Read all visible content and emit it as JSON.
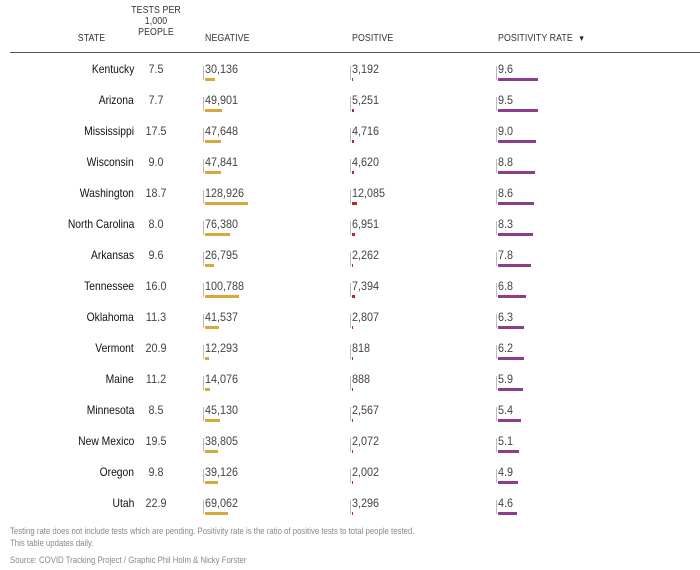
{
  "headers": {
    "state": "STATE",
    "tests_per_1000_line1": "TESTS PER",
    "tests_per_1000_line2": "1,000",
    "tests_per_1000_line3": "PEOPLE",
    "negative": "NEGATIVE",
    "positive": "POSITIVE",
    "positivity_rate": "POSITIVITY RATE",
    "sort_icon": "triangle-down"
  },
  "colors": {
    "negative": "#d6a93a",
    "positive": "#b7282e",
    "positivity_rate": "#8e3c8e"
  },
  "footer": {
    "note": "Testing rate does not include tests which are pending. Positivity rate is the ratio of positive tests to total people tested.",
    "updates": "This table updates daily.",
    "source": "Source: COVID Tracking Project / Graphic Phil Holm & Nicky Forster"
  },
  "chart_data": {
    "type": "table",
    "columns": [
      "STATE",
      "TESTS PER 1,000 PEOPLE",
      "NEGATIVE",
      "POSITIVE",
      "POSITIVITY RATE"
    ],
    "sorted_by": "POSITIVITY RATE",
    "rows": [
      {
        "state": "Kentucky",
        "tests_per_1000": "7.5",
        "negative": 30136,
        "negative_label": "30,136",
        "positive": 3192,
        "positive_label": "3,192",
        "positivity_rate": 9.6,
        "positivity_rate_label": "9.6"
      },
      {
        "state": "Arizona",
        "tests_per_1000": "7.7",
        "negative": 49901,
        "negative_label": "49,901",
        "positive": 5251,
        "positive_label": "5,251",
        "positivity_rate": 9.5,
        "positivity_rate_label": "9.5"
      },
      {
        "state": "Mississippi",
        "tests_per_1000": "17.5",
        "negative": 47648,
        "negative_label": "47,648",
        "positive": 4716,
        "positive_label": "4,716",
        "positivity_rate": 9.0,
        "positivity_rate_label": "9.0"
      },
      {
        "state": "Wisconsin",
        "tests_per_1000": "9.0",
        "negative": 47841,
        "negative_label": "47,841",
        "positive": 4620,
        "positive_label": "4,620",
        "positivity_rate": 8.8,
        "positivity_rate_label": "8.8"
      },
      {
        "state": "Washington",
        "tests_per_1000": "18.7",
        "negative": 128926,
        "negative_label": "128,926",
        "positive": 12085,
        "positive_label": "12,085",
        "positivity_rate": 8.6,
        "positivity_rate_label": "8.6"
      },
      {
        "state": "North Carolina",
        "tests_per_1000": "8.0",
        "negative": 76380,
        "negative_label": "76,380",
        "positive": 6951,
        "positive_label": "6,951",
        "positivity_rate": 8.3,
        "positivity_rate_label": "8.3"
      },
      {
        "state": "Arkansas",
        "tests_per_1000": "9.6",
        "negative": 26795,
        "negative_label": "26,795",
        "positive": 2262,
        "positive_label": "2,262",
        "positivity_rate": 7.8,
        "positivity_rate_label": "7.8"
      },
      {
        "state": "Tennessee",
        "tests_per_1000": "16.0",
        "negative": 100788,
        "negative_label": "100,788",
        "positive": 7394,
        "positive_label": "7,394",
        "positivity_rate": 6.8,
        "positivity_rate_label": "6.8"
      },
      {
        "state": "Oklahoma",
        "tests_per_1000": "11.3",
        "negative": 41537,
        "negative_label": "41,537",
        "positive": 2807,
        "positive_label": "2,807",
        "positivity_rate": 6.3,
        "positivity_rate_label": "6.3"
      },
      {
        "state": "Vermont",
        "tests_per_1000": "20.9",
        "negative": 12293,
        "negative_label": "12,293",
        "positive": 818,
        "positive_label": "818",
        "positivity_rate": 6.2,
        "positivity_rate_label": "6.2"
      },
      {
        "state": "Maine",
        "tests_per_1000": "11.2",
        "negative": 14076,
        "negative_label": "14,076",
        "positive": 888,
        "positive_label": "888",
        "positivity_rate": 5.9,
        "positivity_rate_label": "5.9"
      },
      {
        "state": "Minnesota",
        "tests_per_1000": "8.5",
        "negative": 45130,
        "negative_label": "45,130",
        "positive": 2567,
        "positive_label": "2,567",
        "positivity_rate": 5.4,
        "positivity_rate_label": "5.4"
      },
      {
        "state": "New Mexico",
        "tests_per_1000": "19.5",
        "negative": 38805,
        "negative_label": "38,805",
        "positive": 2072,
        "positive_label": "2,072",
        "positivity_rate": 5.1,
        "positivity_rate_label": "5.1"
      },
      {
        "state": "Oregon",
        "tests_per_1000": "9.8",
        "negative": 39126,
        "negative_label": "39,126",
        "positive": 2002,
        "positive_label": "2,002",
        "positivity_rate": 4.9,
        "positivity_rate_label": "4.9"
      },
      {
        "state": "Utah",
        "tests_per_1000": "22.9",
        "negative": 69062,
        "negative_label": "69,062",
        "positive": 3296,
        "positive_label": "3,296",
        "positivity_rate": 4.6,
        "positivity_rate_label": "4.6"
      }
    ]
  }
}
